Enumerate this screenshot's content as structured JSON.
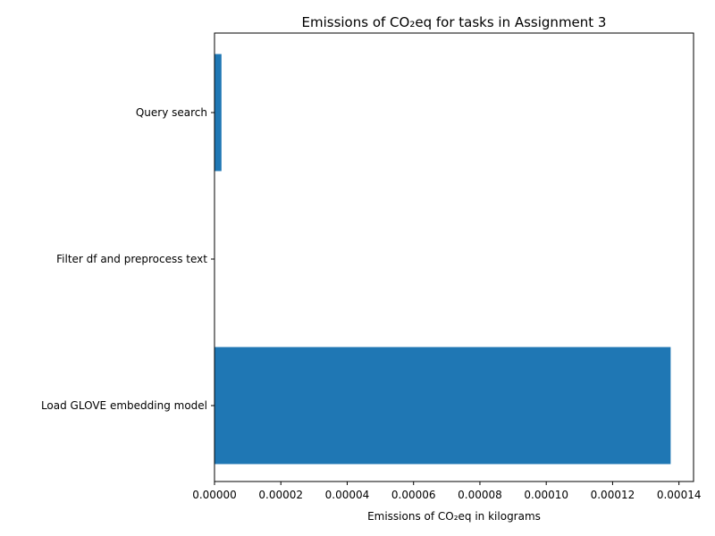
{
  "chart_data": {
    "type": "bar",
    "orientation": "horizontal",
    "title": "Emissions of CO₂eq for tasks in Assignment 3",
    "xlabel": "Emissions of CO₂eq in kilograms",
    "ylabel": "",
    "categories": [
      "Load GLOVE embedding model",
      "Filter df and preprocess text",
      "Query search"
    ],
    "values": [
      0.0001375,
      1e-07,
      2.1e-06
    ],
    "xlim": [
      0,
      0.0001444
    ],
    "xticks": [
      0,
      2e-05,
      4e-05,
      6e-05,
      8e-05,
      0.0001,
      0.00012,
      0.00014
    ],
    "xtick_labels": [
      "0.00000",
      "0.00002",
      "0.00004",
      "0.00006",
      "0.00008",
      "0.00010",
      "0.00012",
      "0.00014"
    ],
    "bar_color": "#1f77b4",
    "grid": false,
    "legend": "none"
  }
}
